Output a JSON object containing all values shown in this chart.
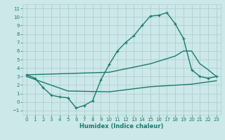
{
  "xlabel": "Humidex (Indice chaleur)",
  "bg_color": "#cce8e8",
  "grid_color": "#b0d0d0",
  "line_color": "#1a7a6e",
  "xlim": [
    -0.5,
    23.5
  ],
  "ylim": [
    -1.5,
    11.5
  ],
  "xticks": [
    0,
    1,
    2,
    3,
    4,
    5,
    6,
    7,
    8,
    9,
    10,
    11,
    12,
    13,
    14,
    15,
    16,
    17,
    18,
    19,
    20,
    21,
    22,
    23
  ],
  "yticks": [
    -1,
    0,
    1,
    2,
    3,
    4,
    5,
    6,
    7,
    8,
    9,
    10,
    11
  ],
  "line1_x": [
    0,
    1,
    2,
    3,
    4,
    5,
    6,
    7,
    8,
    9,
    10,
    11,
    12,
    13,
    14,
    15,
    16,
    17,
    18,
    19,
    20,
    21,
    22,
    23
  ],
  "line1_y": [
    3.2,
    2.8,
    1.7,
    0.8,
    0.6,
    0.5,
    -0.7,
    -0.4,
    0.15,
    2.6,
    4.4,
    6.0,
    7.0,
    7.8,
    9.0,
    10.1,
    10.2,
    10.5,
    9.2,
    7.5,
    3.8,
    3.0,
    2.8,
    3.0
  ],
  "line2_x": [
    0,
    10,
    11,
    12,
    13,
    14,
    15,
    16,
    17,
    18,
    19,
    20,
    21,
    22,
    23
  ],
  "line2_y": [
    3.2,
    3.5,
    3.7,
    3.9,
    4.1,
    4.3,
    4.5,
    4.8,
    5.1,
    5.4,
    6.0,
    6.0,
    4.5,
    3.8,
    3.0
  ],
  "line3_x": [
    0,
    5,
    10,
    15,
    20,
    23
  ],
  "line3_y": [
    3.0,
    1.3,
    1.2,
    1.8,
    2.1,
    2.5
  ]
}
